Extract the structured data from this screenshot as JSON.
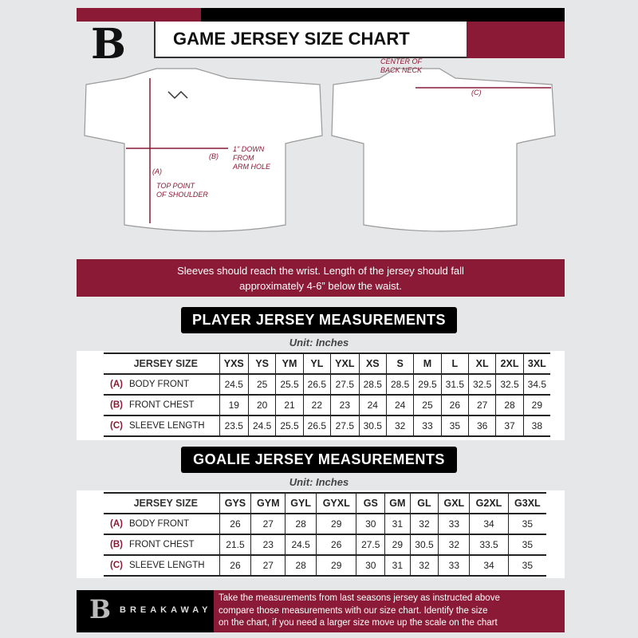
{
  "header": {
    "title": "GAME JERSEY SIZE CHART",
    "logo_letter": "B"
  },
  "diagram": {
    "center_back_neck": [
      "CENTER OF",
      "BACK NECK"
    ],
    "label_a": "(A)",
    "label_b": "(B)",
    "label_c": "(C)",
    "top_point": [
      "TOP POINT",
      "OF SHOULDER"
    ],
    "one_inch_down": [
      "1\" DOWN",
      "FROM",
      "ARM HOLE"
    ]
  },
  "note": [
    "Sleeves should reach the wrist. Length of the jersey should fall",
    "approximately 4-6” below the waist."
  ],
  "player": {
    "title": "PLAYER JERSEY MEASUREMENTS",
    "unit": "Unit: Inches",
    "header_label": "JERSEY SIZE",
    "sizes": [
      "YXS",
      "YS",
      "YM",
      "YL",
      "YXL",
      "XS",
      "S",
      "M",
      "L",
      "XL",
      "2XL",
      "3XL"
    ],
    "rows": [
      {
        "key": "(A)",
        "label": "BODY FRONT",
        "values": [
          "24.5",
          "25",
          "25.5",
          "26.5",
          "27.5",
          "28.5",
          "28.5",
          "29.5",
          "31.5",
          "32.5",
          "32.5",
          "34.5"
        ]
      },
      {
        "key": "(B)",
        "label": "FRONT CHEST",
        "values": [
          "19",
          "20",
          "21",
          "22",
          "23",
          "24",
          "24",
          "25",
          "26",
          "27",
          "28",
          "29"
        ]
      },
      {
        "key": "(C)",
        "label": "SLEEVE LENGTH",
        "values": [
          "23.5",
          "24.5",
          "25.5",
          "26.5",
          "27.5",
          "30.5",
          "32",
          "33",
          "35",
          "36",
          "37",
          "38"
        ]
      }
    ]
  },
  "goalie": {
    "title": "GOALIE JERSEY MEASUREMENTS",
    "unit": "Unit: Inches",
    "header_label": "JERSEY SIZE",
    "sizes": [
      "GYS",
      "GYM",
      "GYL",
      "GYXL",
      "GS",
      "GM",
      "GL",
      "GXL",
      "G2XL",
      "G3XL"
    ],
    "rows": [
      {
        "key": "(A)",
        "label": "BODY FRONT",
        "values": [
          "26",
          "27",
          "28",
          "29",
          "30",
          "31",
          "32",
          "33",
          "34",
          "35"
        ]
      },
      {
        "key": "(B)",
        "label": "FRONT CHEST",
        "values": [
          "21.5",
          "23",
          "24.5",
          "26",
          "27.5",
          "29",
          "30.5",
          "32",
          "33.5",
          "35"
        ]
      },
      {
        "key": "(C)",
        "label": "SLEEVE LENGTH",
        "values": [
          "26",
          "27",
          "28",
          "29",
          "30",
          "31",
          "32",
          "33",
          "34",
          "35"
        ]
      }
    ]
  },
  "footer": {
    "brand": "BREAKAWAY",
    "text": [
      "Take the measurements from last seasons jersey as instructed above",
      "compare those measurements  with our size chart. Identify the size",
      "on the chart, if you need a larger size move up the scale on the chart"
    ]
  },
  "colors": {
    "maroon": "#8a1a36",
    "black": "#000000",
    "background": "#e6e7e8"
  }
}
